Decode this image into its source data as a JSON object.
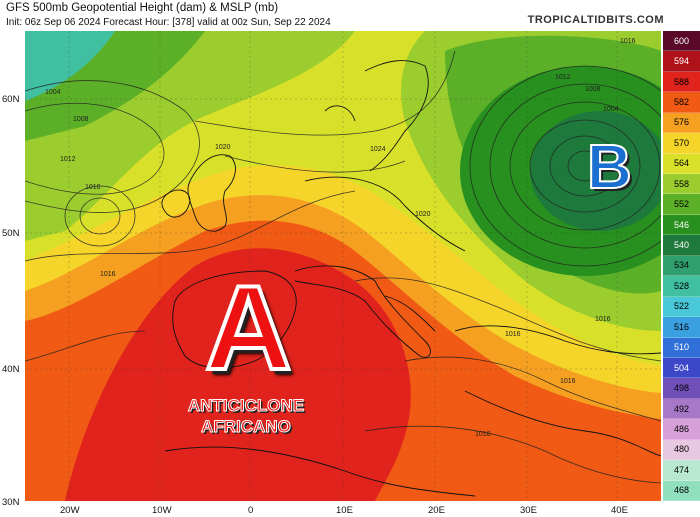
{
  "header": {
    "title": "GFS 500mb Geopotential Height (dam) & MSLP (mb)",
    "subtitle": "Init: 06z Sep 06 2024   Forecast Hour: [378]   valid at 00z Sun, Sep 22 2024",
    "brand": "TROPICALTIDBITS.COM"
  },
  "axes": {
    "latitudes": [
      "60N",
      "50N",
      "40N",
      "30N"
    ],
    "longitudes": [
      "20W",
      "10W",
      "0",
      "10E",
      "20E",
      "30E",
      "40E"
    ]
  },
  "legend": {
    "units": "dam",
    "values": [
      "600",
      "594",
      "588",
      "582",
      "576",
      "570",
      "564",
      "558",
      "552",
      "546",
      "540",
      "534",
      "528",
      "522",
      "516",
      "510",
      "504",
      "498",
      "492",
      "486",
      "480",
      "474",
      "468"
    ],
    "colors": [
      "#5a0a28",
      "#b0121a",
      "#e0231c",
      "#f05a14",
      "#f5a020",
      "#f5d52a",
      "#d8e02a",
      "#9ccd2e",
      "#5cb028",
      "#28901e",
      "#1e7a3c",
      "#30a070",
      "#40c0a0",
      "#48c8d8",
      "#3aa0e0",
      "#3070d8",
      "#3c48c8",
      "#7050b8",
      "#a878c8",
      "#d8a0d8",
      "#e8c8e0",
      "#b8e8d0",
      "#90e0c0"
    ]
  },
  "labels": {
    "high": "A",
    "low": "B",
    "annotation_line1": "ANTICICLONE",
    "annotation_line2": "AFRICANO"
  },
  "isobars": [
    "1004",
    "1008",
    "1012",
    "1016",
    "1020",
    "1024",
    "1004",
    "1008",
    "1012",
    "1016",
    "1020",
    "1016",
    "1016",
    "1016",
    "1016",
    "1016"
  ]
}
